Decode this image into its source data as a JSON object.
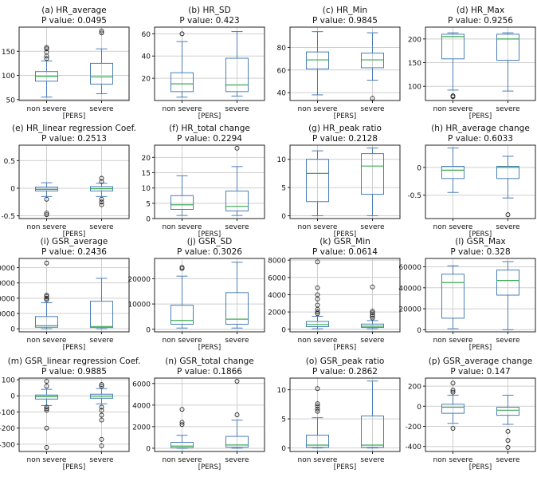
{
  "figure": {
    "xlabel": "[PERS]",
    "categories": [
      "non severe",
      "severe"
    ],
    "colors": {
      "box": "#4a7eb8",
      "median": "#3cab52",
      "grid": "#cfcfcf",
      "axis": "#222222",
      "outlier": "#222222"
    }
  },
  "chart_data": [
    {
      "type": "box",
      "title": "(a) HR_average",
      "pvalue": "P value: 0.0495",
      "ylim": [
        48,
        200
      ],
      "ticks": [
        50,
        100,
        150
      ],
      "series": [
        {
          "name": "non severe",
          "whislo": 55,
          "q1": 88,
          "med": 98,
          "q3": 108,
          "whishi": 130,
          "fliers": [
            135,
            140,
            148,
            155,
            158
          ]
        },
        {
          "name": "severe",
          "whislo": 62,
          "q1": 82,
          "med": 97,
          "q3": 125,
          "whishi": 155,
          "fliers": [
            188,
            192
          ]
        }
      ]
    },
    {
      "type": "box",
      "title": "(b) HR_SD",
      "pvalue": "P value: 0.423",
      "ylim": [
        0,
        66
      ],
      "ticks": [
        20,
        40,
        60
      ],
      "series": [
        {
          "name": "non severe",
          "whislo": 3,
          "q1": 8,
          "med": 15,
          "q3": 25,
          "whishi": 53,
          "fliers": [
            60
          ]
        },
        {
          "name": "severe",
          "whislo": 4,
          "q1": 8,
          "med": 14,
          "q3": 38,
          "whishi": 62,
          "fliers": []
        }
      ]
    },
    {
      "type": "box",
      "title": "(c) HR_Min",
      "pvalue": "P value: 0.9845",
      "ylim": [
        33,
        98
      ],
      "ticks": [
        40,
        60,
        80
      ],
      "series": [
        {
          "name": "non severe",
          "whislo": 38,
          "q1": 61,
          "med": 69,
          "q3": 76,
          "whishi": 94,
          "fliers": []
        },
        {
          "name": "severe",
          "whislo": 51,
          "q1": 62,
          "med": 69,
          "q3": 75,
          "whishi": 93,
          "fliers": [
            35
          ]
        }
      ]
    },
    {
      "type": "box",
      "title": "(d) HR_Max",
      "pvalue": "P value: 0.9256",
      "ylim": [
        70,
        225
      ],
      "ticks": [
        100,
        150,
        200
      ],
      "series": [
        {
          "name": "non severe",
          "whislo": 92,
          "q1": 158,
          "med": 205,
          "q3": 210,
          "whishi": 213,
          "fliers": [
            78,
            80
          ]
        },
        {
          "name": "severe",
          "whislo": 90,
          "q1": 155,
          "med": 200,
          "q3": 210,
          "whishi": 213,
          "fliers": []
        }
      ]
    },
    {
      "type": "box",
      "title": "(e) HR_linear regression Coef.",
      "pvalue": "P value: 0.2513",
      "ylim": [
        -0.55,
        0.78
      ],
      "ticks": [
        -0.5,
        0.0,
        0.5
      ],
      "series": [
        {
          "name": "non severe",
          "whislo": -0.15,
          "q1": -0.05,
          "med": -0.02,
          "q3": 0.02,
          "whishi": 0.1,
          "fliers": [
            -0.2,
            -0.45,
            -0.48
          ]
        },
        {
          "name": "severe",
          "whislo": -0.15,
          "q1": -0.05,
          "med": -0.01,
          "q3": 0.03,
          "whishi": 0.09,
          "fliers": [
            0.12,
            0.18,
            -0.2,
            -0.25,
            -0.3
          ]
        }
      ]
    },
    {
      "type": "box",
      "title": "(f) HR_total change",
      "pvalue": "P value: 0.2294",
      "ylim": [
        0,
        24
      ],
      "ticks": [
        0,
        5,
        10,
        15,
        20
      ],
      "series": [
        {
          "name": "non severe",
          "whislo": 1,
          "q1": 3,
          "med": 4.5,
          "q3": 7.5,
          "whishi": 14,
          "fliers": []
        },
        {
          "name": "severe",
          "whislo": 1,
          "q1": 2.5,
          "med": 4,
          "q3": 9,
          "whishi": 17,
          "fliers": [
            23
          ]
        }
      ]
    },
    {
      "type": "box",
      "title": "(g) HR_peak ratio",
      "pvalue": "P value: 0.2128",
      "ylim": [
        -0.5,
        12.5
      ],
      "ticks": [
        0,
        5,
        10
      ],
      "series": [
        {
          "name": "non severe",
          "whislo": 0,
          "q1": 2.5,
          "med": 7.5,
          "q3": 10,
          "whishi": 11.5,
          "fliers": []
        },
        {
          "name": "severe",
          "whislo": 0,
          "q1": 3.8,
          "med": 8.8,
          "q3": 11,
          "whishi": 12,
          "fliers": []
        }
      ]
    },
    {
      "type": "box",
      "title": "(h) HR_average change",
      "pvalue": "P value: 0.6033",
      "ylim": [
        -0.92,
        0.4
      ],
      "ticks": [
        -0.5,
        0.0
      ],
      "series": [
        {
          "name": "non severe",
          "whislo": -0.45,
          "q1": -0.2,
          "med": -0.05,
          "q3": 0.02,
          "whishi": 0.35,
          "fliers": []
        },
        {
          "name": "severe",
          "whislo": -0.55,
          "q1": -0.2,
          "med": 0.0,
          "q3": 0.02,
          "whishi": 0.2,
          "fliers": [
            -0.85
          ]
        }
      ]
    },
    {
      "type": "box",
      "title": "(i) GSR_average",
      "pvalue": "P value: 0.2436",
      "ylim": [
        -2000,
        46000
      ],
      "ticks": [
        0,
        10000,
        20000,
        30000,
        40000
      ],
      "series": [
        {
          "name": "non severe",
          "whislo": 0,
          "q1": 1000,
          "med": 2000,
          "q3": 8000,
          "whishi": 17000,
          "fliers": [
            19000,
            20000,
            21000,
            22000,
            43000
          ]
        },
        {
          "name": "severe",
          "whislo": 0,
          "q1": 800,
          "med": 1500,
          "q3": 18000,
          "whishi": 33000,
          "fliers": []
        }
      ]
    },
    {
      "type": "box",
      "title": "(j) GSR_SD",
      "pvalue": "P value: 0.3026",
      "ylim": [
        -1000,
        28000
      ],
      "ticks": [
        0,
        10000,
        20000
      ],
      "series": [
        {
          "name": "non severe",
          "whislo": 500,
          "q1": 2000,
          "med": 3500,
          "q3": 9500,
          "whishi": 21000,
          "fliers": [
            24000,
            24500
          ]
        },
        {
          "name": "severe",
          "whislo": 500,
          "q1": 2000,
          "med": 4000,
          "q3": 14500,
          "whishi": 26500,
          "fliers": []
        }
      ]
    },
    {
      "type": "box",
      "title": "(k) GSR_Min",
      "pvalue": "P value: 0.0614",
      "ylim": [
        -300,
        8200
      ],
      "ticks": [
        0,
        2000,
        4000,
        6000,
        8000
      ],
      "series": [
        {
          "name": "non severe",
          "whislo": 50,
          "q1": 300,
          "med": 550,
          "q3": 900,
          "whishi": 1500,
          "fliers": [
            1800,
            2000,
            2300,
            2800,
            3500,
            4000,
            4800,
            7800
          ]
        },
        {
          "name": "severe",
          "whislo": 50,
          "q1": 200,
          "med": 350,
          "q3": 600,
          "whishi": 1000,
          "fliers": [
            1300,
            1500,
            1700,
            1900,
            2100,
            4900
          ]
        }
      ]
    },
    {
      "type": "box",
      "title": "(l) GSR_Max",
      "pvalue": "P value: 0.328",
      "ylim": [
        -2000,
        68000
      ],
      "ticks": [
        0,
        20000,
        40000,
        60000
      ],
      "series": [
        {
          "name": "non severe",
          "whislo": 1000,
          "q1": 11000,
          "med": 45000,
          "q3": 53000,
          "whishi": 61000,
          "fliers": []
        },
        {
          "name": "severe",
          "whislo": 0,
          "q1": 33000,
          "med": 47000,
          "q3": 57000,
          "whishi": 65000,
          "fliers": []
        }
      ]
    },
    {
      "type": "box",
      "title": "(m) GSR_linear regression Coef.",
      "pvalue": "P value: 0.9885",
      "ylim": [
        -345,
        110
      ],
      "ticks": [
        -300,
        -200,
        -100,
        0,
        100
      ],
      "series": [
        {
          "name": "non severe",
          "whislo": -60,
          "q1": -20,
          "med": -5,
          "q3": 5,
          "whishi": 40,
          "fliers": [
            90,
            60,
            -70,
            -80,
            -90,
            -200,
            -320
          ]
        },
        {
          "name": "severe",
          "whislo": -50,
          "q1": -15,
          "med": -2,
          "q3": 10,
          "whishi": 45,
          "fliers": [
            60,
            70,
            -70,
            -90,
            -120,
            -150,
            -270,
            -310
          ]
        }
      ]
    },
    {
      "type": "box",
      "title": "(n) GSR_total change",
      "pvalue": "P value: 0.1866",
      "ylim": [
        -300,
        6500
      ],
      "ticks": [
        0,
        2000,
        4000,
        6000
      ],
      "series": [
        {
          "name": "non severe",
          "whislo": 0,
          "q1": 50,
          "med": 200,
          "q3": 550,
          "whishi": 1200,
          "fliers": [
            2200,
            2400,
            3600
          ]
        },
        {
          "name": "severe",
          "whislo": 0,
          "q1": 100,
          "med": 300,
          "q3": 1100,
          "whishi": 2600,
          "fliers": [
            3100,
            6200
          ]
        }
      ]
    },
    {
      "type": "box",
      "title": "(o) GSR_peak ratio",
      "pvalue": "P value: 0.2862",
      "ylim": [
        -0.6,
        12
      ],
      "ticks": [
        0,
        5,
        10
      ],
      "series": [
        {
          "name": "non severe",
          "whislo": 0,
          "q1": 0.1,
          "med": 0.5,
          "q3": 2.2,
          "whishi": 5.2,
          "fliers": [
            6.3,
            6.7,
            7.2,
            7.6,
            10.2
          ]
        },
        {
          "name": "severe",
          "whislo": 0,
          "q1": 0.1,
          "med": 0.5,
          "q3": 5.5,
          "whishi": 11.5,
          "fliers": []
        }
      ]
    },
    {
      "type": "box",
      "title": "(p) GSR_average change",
      "pvalue": "P value: 0.147",
      "ylim": [
        -450,
        280
      ],
      "ticks": [
        -400,
        -200,
        0,
        200
      ],
      "series": [
        {
          "name": "non severe",
          "whislo": -170,
          "q1": -70,
          "med": -10,
          "q3": 20,
          "whishi": 110,
          "fliers": [
            140,
            160,
            230,
            -220
          ]
        },
        {
          "name": "severe",
          "whislo": -180,
          "q1": -90,
          "med": -40,
          "q3": -10,
          "whishi": 110,
          "fliers": [
            -250,
            -340,
            -410
          ]
        }
      ]
    }
  ]
}
